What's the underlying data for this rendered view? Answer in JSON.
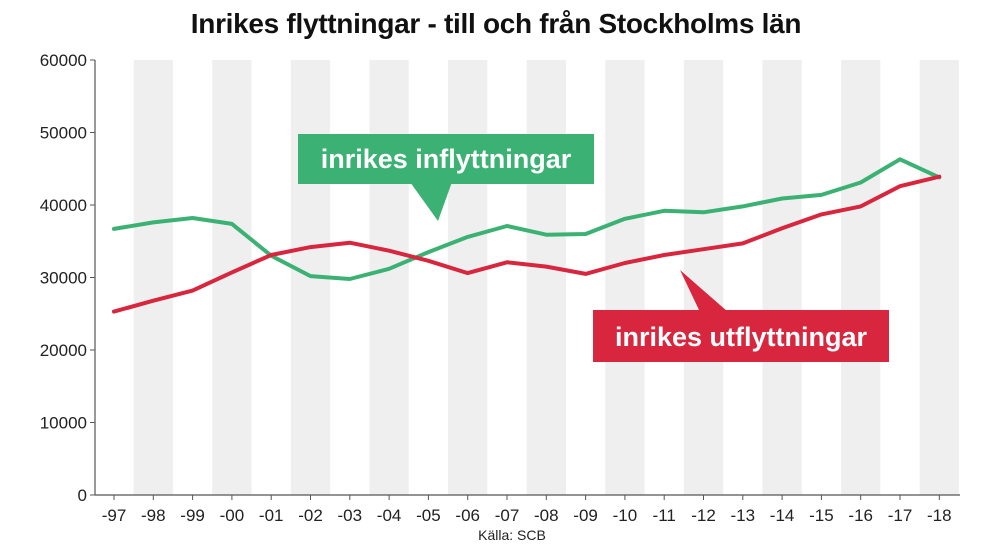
{
  "chart_data": {
    "type": "line",
    "title": "Inrikes flyttningar - till och från Stockholms län",
    "source": "Källa: SCB",
    "categories": [
      "-97",
      "-98",
      "-99",
      "-00",
      "-01",
      "-02",
      "-03",
      "-04",
      "-05",
      "-06",
      "-07",
      "-08",
      "-09",
      "-10",
      "-11",
      "-12",
      "-13",
      "-14",
      "-15",
      "-16",
      "-17",
      "-18"
    ],
    "ylim": [
      0,
      60000
    ],
    "yticks": [
      0,
      10000,
      20000,
      30000,
      40000,
      50000,
      60000
    ],
    "ytick_labels": [
      "0",
      "10000",
      "20000",
      "30000",
      "40000",
      "50000",
      "60000"
    ],
    "alternating_column_shading": true,
    "series": [
      {
        "name": "inrikes inflyttningar",
        "color": "#3bb273",
        "values": [
          36700,
          37600,
          38200,
          37400,
          33000,
          30200,
          29800,
          31200,
          33500,
          35600,
          37100,
          35900,
          36000,
          38100,
          39200,
          39000,
          39800,
          40900,
          41400,
          43100,
          46300,
          43800
        ]
      },
      {
        "name": "inrikes utflyttningar",
        "color": "#d7263d",
        "values": [
          25300,
          26800,
          28200,
          30700,
          33100,
          34200,
          34800,
          33700,
          32300,
          30600,
          32100,
          31500,
          30500,
          32000,
          33100,
          33900,
          34700,
          36800,
          38700,
          39800,
          42600,
          43900
        ]
      }
    ]
  }
}
